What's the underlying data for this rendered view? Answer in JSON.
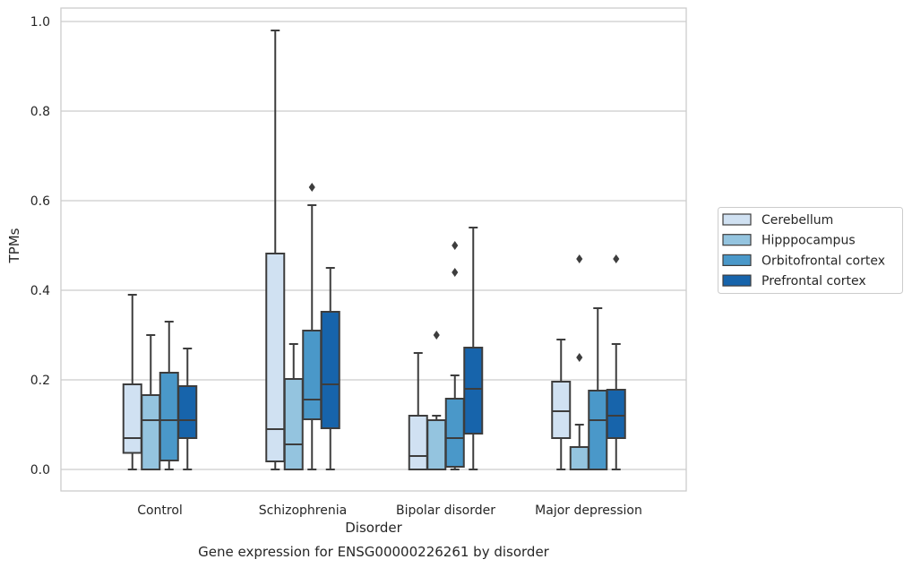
{
  "chart_data": {
    "type": "box",
    "caption": "Gene expression for ENSG00000226261 by disorder",
    "xlabel": "Disorder",
    "ylabel": "TPMs",
    "ylim": [
      -0.045,
      1.03
    ],
    "yticks": [
      0.0,
      0.2,
      0.4,
      0.6,
      0.8,
      1.0
    ],
    "ytick_labels": [
      "0.0",
      "0.2",
      "0.4",
      "0.6",
      "0.8",
      "1.0"
    ],
    "grid": "horizontal",
    "legend_position": "right",
    "categories": [
      "Control",
      "Schizophrenia",
      "Bipolar disorder",
      "Major depression"
    ],
    "series": [
      {
        "name": "Cerebellum",
        "color": "#d0e1f2",
        "boxes": [
          {
            "whislo": 0.0,
            "q1": 0.037,
            "med": 0.07,
            "q3": 0.19,
            "whishi": 0.39,
            "fliers": []
          },
          {
            "whislo": 0.0,
            "q1": 0.018,
            "med": 0.09,
            "q3": 0.482,
            "whishi": 0.98,
            "fliers": []
          },
          {
            "whislo": 0.0,
            "q1": 0.0,
            "med": 0.03,
            "q3": 0.12,
            "whishi": 0.26,
            "fliers": []
          },
          {
            "whislo": 0.0,
            "q1": 0.07,
            "med": 0.13,
            "q3": 0.196,
            "whishi": 0.29,
            "fliers": []
          }
        ]
      },
      {
        "name": "Hipppocampus",
        "color": "#94c4df",
        "boxes": [
          {
            "whislo": 0.0,
            "q1": 0.0,
            "med": 0.11,
            "q3": 0.166,
            "whishi": 0.3,
            "fliers": []
          },
          {
            "whislo": 0.0,
            "q1": 0.0,
            "med": 0.056,
            "q3": 0.202,
            "whishi": 0.28,
            "fliers": []
          },
          {
            "whislo": 0.0,
            "q1": 0.0,
            "med": 0.11,
            "q3": 0.11,
            "whishi": 0.12,
            "fliers": [
              0.3
            ]
          },
          {
            "whislo": 0.0,
            "q1": 0.0,
            "med": 0.0,
            "q3": 0.05,
            "whishi": 0.1,
            "fliers": [
              0.25,
              0.47
            ]
          }
        ]
      },
      {
        "name": "Orbitofrontal cortex",
        "color": "#4a98c9",
        "boxes": [
          {
            "whislo": 0.0,
            "q1": 0.02,
            "med": 0.11,
            "q3": 0.216,
            "whishi": 0.33,
            "fliers": []
          },
          {
            "whislo": 0.0,
            "q1": 0.112,
            "med": 0.156,
            "q3": 0.31,
            "whishi": 0.59,
            "fliers": [
              0.63
            ]
          },
          {
            "whislo": 0.0,
            "q1": 0.006,
            "med": 0.07,
            "q3": 0.158,
            "whishi": 0.21,
            "fliers": [
              0.44,
              0.5
            ]
          },
          {
            "whislo": 0.0,
            "q1": 0.0,
            "med": 0.11,
            "q3": 0.176,
            "whishi": 0.36,
            "fliers": []
          }
        ]
      },
      {
        "name": "Prefrontal cortex",
        "color": "#1764ab",
        "boxes": [
          {
            "whislo": 0.0,
            "q1": 0.07,
            "med": 0.11,
            "q3": 0.186,
            "whishi": 0.27,
            "fliers": []
          },
          {
            "whislo": 0.0,
            "q1": 0.092,
            "med": 0.19,
            "q3": 0.352,
            "whishi": 0.45,
            "fliers": []
          },
          {
            "whislo": 0.0,
            "q1": 0.08,
            "med": 0.18,
            "q3": 0.272,
            "whishi": 0.54,
            "fliers": []
          },
          {
            "whislo": 0.0,
            "q1": 0.07,
            "med": 0.12,
            "q3": 0.178,
            "whishi": 0.28,
            "fliers": [
              0.47
            ]
          }
        ]
      }
    ]
  }
}
